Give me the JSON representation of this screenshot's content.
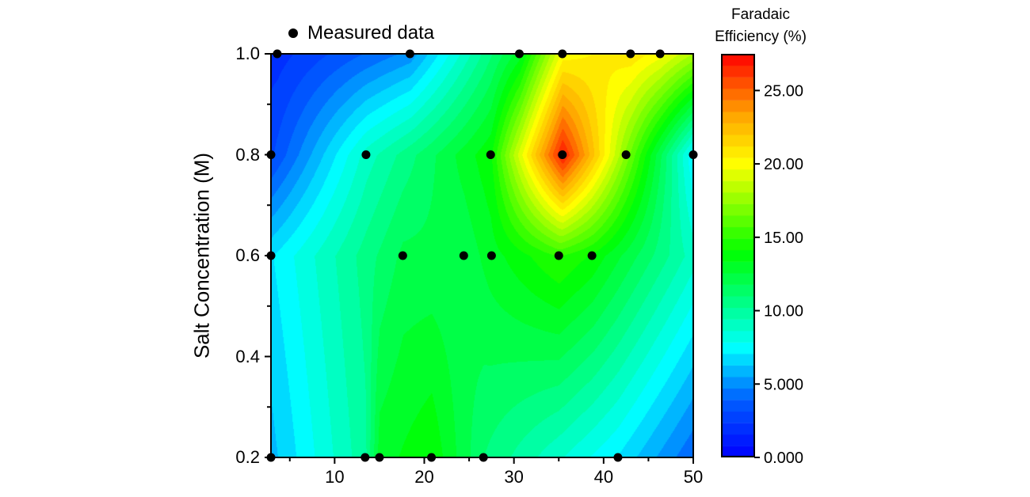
{
  "chart_data": {
    "type": "contour",
    "title": "",
    "xlabel": "",
    "ylabel": "Salt Concentration (M)",
    "xlim": [
      2.9,
      50
    ],
    "ylim": [
      0.2,
      1.0
    ],
    "x_ticks": [
      10,
      20,
      30,
      40,
      50
    ],
    "y_ticks": [
      0.2,
      0.4,
      0.6,
      0.8,
      1.0
    ],
    "y_tick_labels": [
      "0.2",
      "0.4",
      "0.6",
      "0.8",
      "1.0"
    ],
    "legend": {
      "label": "Measured data",
      "placement": "top-left"
    },
    "colorbar": {
      "title_lines": [
        "Faradaic",
        "Efficiency (%)"
      ],
      "range": [
        0,
        27.5
      ],
      "ticks": [
        0,
        5,
        10,
        15,
        20,
        25
      ],
      "tick_labels": [
        "0.000",
        "5.000",
        "10.00",
        "15.00",
        "20.00",
        "25.00"
      ],
      "levels": 35,
      "colors": [
        {
          "v": 0,
          "c": "#0000ff"
        },
        {
          "v": 4,
          "c": "#0060ff"
        },
        {
          "v": 7.5,
          "c": "#00ffff"
        },
        {
          "v": 14,
          "c": "#00ff00"
        },
        {
          "v": 20,
          "c": "#ffff00"
        },
        {
          "v": 23.5,
          "c": "#ffa000"
        },
        {
          "v": 27.5,
          "c": "#ff0000"
        }
      ]
    },
    "surface_rows": [
      {
        "y": 1.0,
        "x": [
          2.9,
          3.6,
          18.4,
          30.6,
          35.4,
          43.0,
          46.3,
          50
        ],
        "z": [
          2,
          2,
          5,
          13,
          20,
          21,
          20,
          18
        ]
      },
      {
        "y": 0.8,
        "x": [
          2.9,
          13.5,
          27.4,
          35.4,
          42.5,
          50
        ],
        "z": [
          3,
          9,
          14,
          27,
          17,
          7
        ]
      },
      {
        "y": 0.6,
        "x": [
          2.9,
          17.6,
          24.4,
          27.5,
          35.0,
          38.7,
          50
        ],
        "z": [
          7,
          12,
          12,
          13,
          15,
          14,
          9
        ]
      },
      {
        "y": 0.2,
        "x": [
          2.9,
          13.4,
          15.0,
          20.8,
          26.6,
          41.6,
          50
        ],
        "z": [
          6,
          10,
          13,
          14,
          11,
          7,
          4
        ]
      }
    ],
    "points": [
      {
        "x": 3.6,
        "y": 1.0
      },
      {
        "x": 18.4,
        "y": 1.0
      },
      {
        "x": 30.6,
        "y": 1.0
      },
      {
        "x": 35.4,
        "y": 1.0
      },
      {
        "x": 43.0,
        "y": 1.0
      },
      {
        "x": 46.3,
        "y": 1.0
      },
      {
        "x": 2.9,
        "y": 0.8
      },
      {
        "x": 13.5,
        "y": 0.8
      },
      {
        "x": 27.4,
        "y": 0.8
      },
      {
        "x": 35.4,
        "y": 0.8
      },
      {
        "x": 42.5,
        "y": 0.8
      },
      {
        "x": 50,
        "y": 0.8
      },
      {
        "x": 2.9,
        "y": 0.6
      },
      {
        "x": 17.6,
        "y": 0.6
      },
      {
        "x": 24.4,
        "y": 0.6
      },
      {
        "x": 27.5,
        "y": 0.6
      },
      {
        "x": 35.0,
        "y": 0.6
      },
      {
        "x": 38.7,
        "y": 0.6
      },
      {
        "x": 2.9,
        "y": 0.2
      },
      {
        "x": 13.4,
        "y": 0.2
      },
      {
        "x": 15.0,
        "y": 0.2
      },
      {
        "x": 20.8,
        "y": 0.2
      },
      {
        "x": 26.6,
        "y": 0.2
      },
      {
        "x": 41.6,
        "y": 0.2
      }
    ]
  }
}
